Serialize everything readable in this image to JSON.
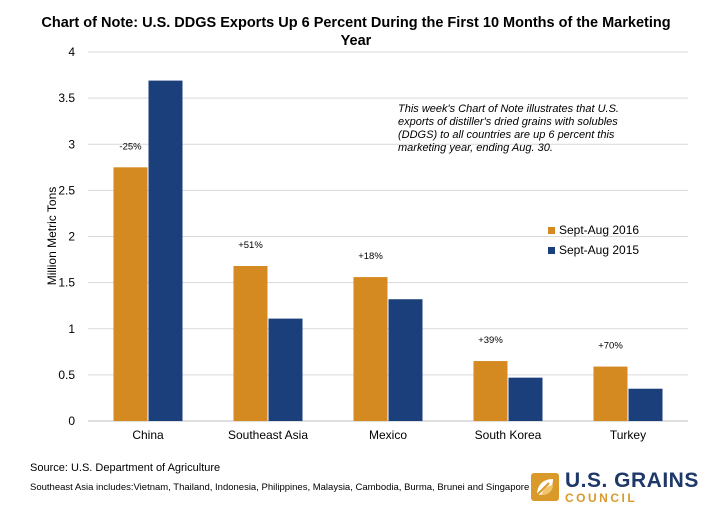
{
  "chart_data": {
    "type": "bar",
    "title": "Chart of Note: U.S. DDGS Exports Up 6 Percent During the First 10 Months of the Marketing Year",
    "xlabel": "",
    "ylabel": "Million Metric Tons",
    "ylim": [
      0,
      4
    ],
    "yticks": [
      "0",
      "0.5",
      "1",
      "1.5",
      "2",
      "2.5",
      "3",
      "3.5",
      "4"
    ],
    "grid": true,
    "legend_position": "right",
    "categories": [
      "China",
      "Southeast Asia",
      "Mexico",
      "South Korea",
      "Turkey"
    ],
    "series": [
      {
        "name": "Sept-Aug 2016",
        "color": "#d48a20",
        "values": [
          2.75,
          1.68,
          1.56,
          0.65,
          0.59
        ]
      },
      {
        "name": "Sept-Aug 2015",
        "color": "#1b3f7a",
        "values": [
          3.69,
          1.11,
          1.32,
          0.47,
          0.35
        ]
      }
    ],
    "change_labels": [
      "-25%",
      "+51%",
      "+18%",
      "+39%",
      "+70%"
    ],
    "annotation": "This week's Chart of Note illustrates that U.S. exports of distiller's dried grains with solubles (DDGS) to all countries are up 6 percent this marketing year, ending Aug. 30."
  },
  "footer": {
    "source": "Source: U.S. Department of Agriculture",
    "note": "Southeast Asia includes:Vietnam, Thailand, Indonesia, Philippines, Malaysia, Cambodia, Burma, Brunei and Singapore"
  },
  "logo": {
    "line1": "U.S. GRAINS",
    "line2": "COUNCIL",
    "icon": "grain-leaf-icon"
  }
}
